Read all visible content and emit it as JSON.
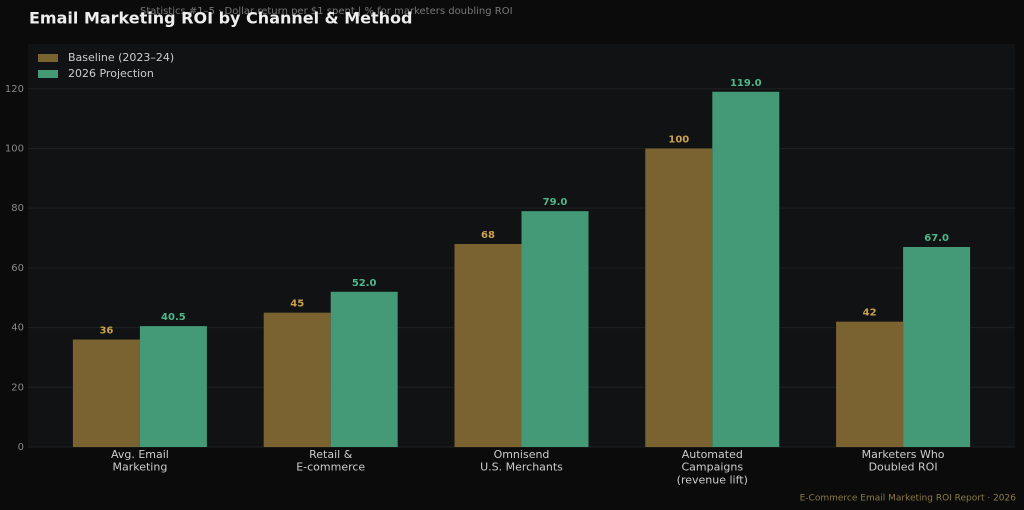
{
  "chart_data": {
    "type": "bar",
    "title": "Email Marketing ROI by Channel & Method",
    "subtitle": "Statistics #1–5  ·  Dollar return per $1 spent  |  % for marketers doubling ROI",
    "footer": "E-Commerce Email Marketing ROI Report · 2026",
    "categories": [
      "Avg. Email\nMarketing",
      "Retail &\nE-commerce",
      "Omnisend\nU.S. Merchants",
      "Automated\nCampaigns\n(revenue lift)",
      "Marketers Who\nDoubled ROI"
    ],
    "series": [
      {
        "name": "Baseline (2023–24)",
        "color": "#7a6331",
        "label_color": "#c9a24a",
        "values": [
          36,
          45,
          68,
          100,
          42
        ],
        "value_labels": [
          "36",
          "45",
          "68",
          "100",
          "42"
        ]
      },
      {
        "name": "2026 Projection",
        "color": "#449a77",
        "label_color": "#4fb88a",
        "values": [
          40.5,
          52,
          79,
          119,
          67
        ],
        "value_labels": [
          "40.5",
          "52.0",
          "79.0",
          "119.0",
          "67.0"
        ]
      }
    ],
    "ylim": [
      0,
      135
    ],
    "yticks": [
      0,
      20,
      40,
      60,
      80,
      100,
      120
    ],
    "grid": true,
    "legend": "upper left"
  }
}
